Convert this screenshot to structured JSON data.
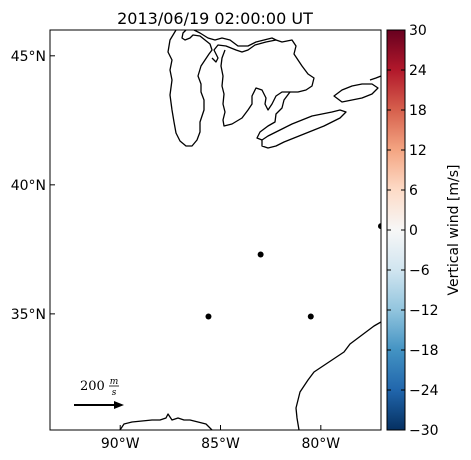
{
  "title": "2013/06/19 02:00:00 UT",
  "lat_ticks": [
    {
      "label": "45°N",
      "value": 45
    },
    {
      "label": "40°N",
      "value": 40
    },
    {
      "label": "35°N",
      "value": 35
    }
  ],
  "lon_ticks": [
    {
      "label": "90°W",
      "value": -90
    },
    {
      "label": "85°W",
      "value": -85
    },
    {
      "label": "80°W",
      "value": -80
    }
  ],
  "map_extent": {
    "lon_min": -93.5,
    "lon_max": -77,
    "lat_min": 30.5,
    "lat_max": 46.0
  },
  "stations": [
    {
      "lon": -83.0,
      "lat": 37.3
    },
    {
      "lon": -85.6,
      "lat": 34.9
    },
    {
      "lon": -80.5,
      "lat": 34.9
    },
    {
      "lon": -77.0,
      "lat": 38.4
    }
  ],
  "reference_vector": {
    "speed_value": "200",
    "unit_num": "m",
    "unit_den": "s"
  },
  "colorbar": {
    "label": "Vertical wind [m/s]",
    "vmin": -30,
    "vmax": 30,
    "ticks": [
      {
        "label": "30",
        "value": 30
      },
      {
        "label": "24",
        "value": 24
      },
      {
        "label": "18",
        "value": 18
      },
      {
        "label": "12",
        "value": 12
      },
      {
        "label": "6",
        "value": 6
      },
      {
        "label": "0",
        "value": 0
      },
      {
        "label": "−6",
        "value": -6
      },
      {
        "label": "−12",
        "value": -12
      },
      {
        "label": "−18",
        "value": -18
      },
      {
        "label": "−24",
        "value": -24
      },
      {
        "label": "−30",
        "value": -30
      }
    ],
    "colors": [
      "#053061",
      "#2166ac",
      "#4393c3",
      "#92c5de",
      "#d1e5f0",
      "#f7f7f7",
      "#fddbc7",
      "#f4a582",
      "#d6604d",
      "#b2182b",
      "#67001f"
    ]
  }
}
